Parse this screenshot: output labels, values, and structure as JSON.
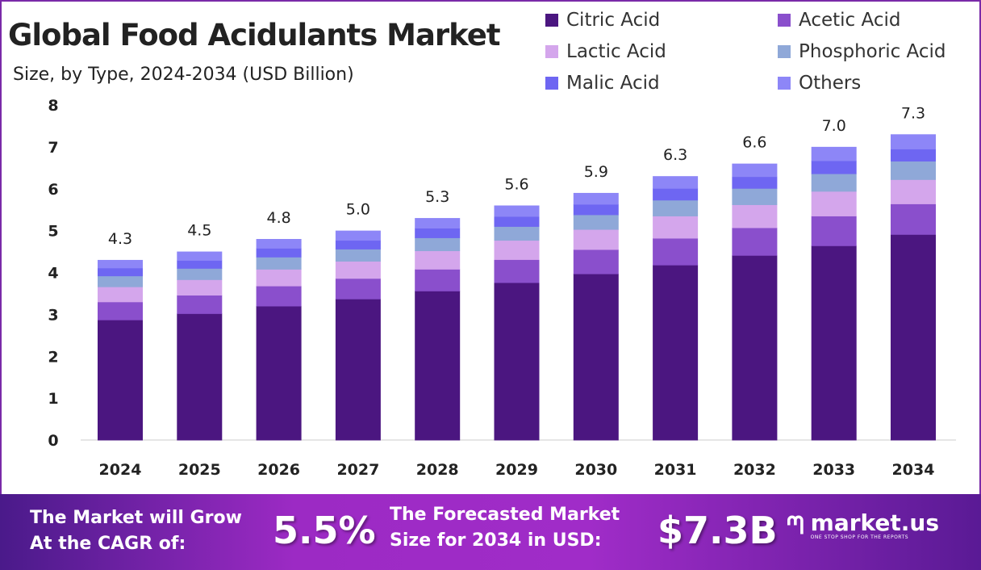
{
  "chart_data": {
    "type": "bar",
    "stacked": true,
    "title": "Global Food Acidulants Market",
    "subtitle": "Size, by Type, 2024-2034 (USD Billion)",
    "xlabel": "",
    "ylabel": "",
    "ylim": [
      0,
      8
    ],
    "yticks": [
      "0",
      "1",
      "2",
      "3",
      "4",
      "5",
      "6",
      "7",
      "8"
    ],
    "grid": false,
    "legend_position": "top-right",
    "categories": [
      "2024",
      "2025",
      "2026",
      "2027",
      "2028",
      "2029",
      "2030",
      "2031",
      "2032",
      "2033",
      "2034"
    ],
    "totals": [
      "4.3",
      "4.5",
      "4.8",
      "5.0",
      "5.3",
      "5.6",
      "5.9",
      "6.3",
      "6.6",
      "7.0",
      "7.3"
    ],
    "series": [
      {
        "name": "Citric Acid",
        "color": "#4b1680",
        "values": [
          2.87,
          3.02,
          3.2,
          3.37,
          3.56,
          3.76,
          3.97,
          4.18,
          4.41,
          4.64,
          4.91
        ]
      },
      {
        "name": "Acetic Acid",
        "color": "#8a4fcc",
        "values": [
          0.43,
          0.44,
          0.48,
          0.49,
          0.52,
          0.55,
          0.58,
          0.64,
          0.66,
          0.71,
          0.73
        ]
      },
      {
        "name": "Lactic Acid",
        "color": "#d4a6ec",
        "values": [
          0.36,
          0.37,
          0.4,
          0.41,
          0.44,
          0.46,
          0.48,
          0.53,
          0.55,
          0.59,
          0.58
        ]
      },
      {
        "name": "Phosphoric Acid",
        "color": "#8fa8d8",
        "values": [
          0.26,
          0.27,
          0.29,
          0.29,
          0.31,
          0.33,
          0.35,
          0.38,
          0.39,
          0.42,
          0.44
        ]
      },
      {
        "name": "Malic Acid",
        "color": "#6e66f2",
        "values": [
          0.19,
          0.19,
          0.21,
          0.21,
          0.23,
          0.24,
          0.25,
          0.28,
          0.28,
          0.31,
          0.29
        ]
      },
      {
        "name": "Others",
        "color": "#8d86f7",
        "values": [
          0.19,
          0.21,
          0.22,
          0.23,
          0.24,
          0.26,
          0.27,
          0.29,
          0.31,
          0.33,
          0.35
        ]
      }
    ]
  },
  "footer": {
    "cagr_label_1": "The Market will Grow",
    "cagr_label_2": "At the CAGR of:",
    "cagr_value": "5.5%",
    "size_label_1": "The Forecasted Market",
    "size_label_2": "Size for 2034 in USD:",
    "size_value": "$7.3B",
    "logo_name": "market.us",
    "logo_tagline": "ONE STOP SHOP FOR THE REPORTS"
  }
}
